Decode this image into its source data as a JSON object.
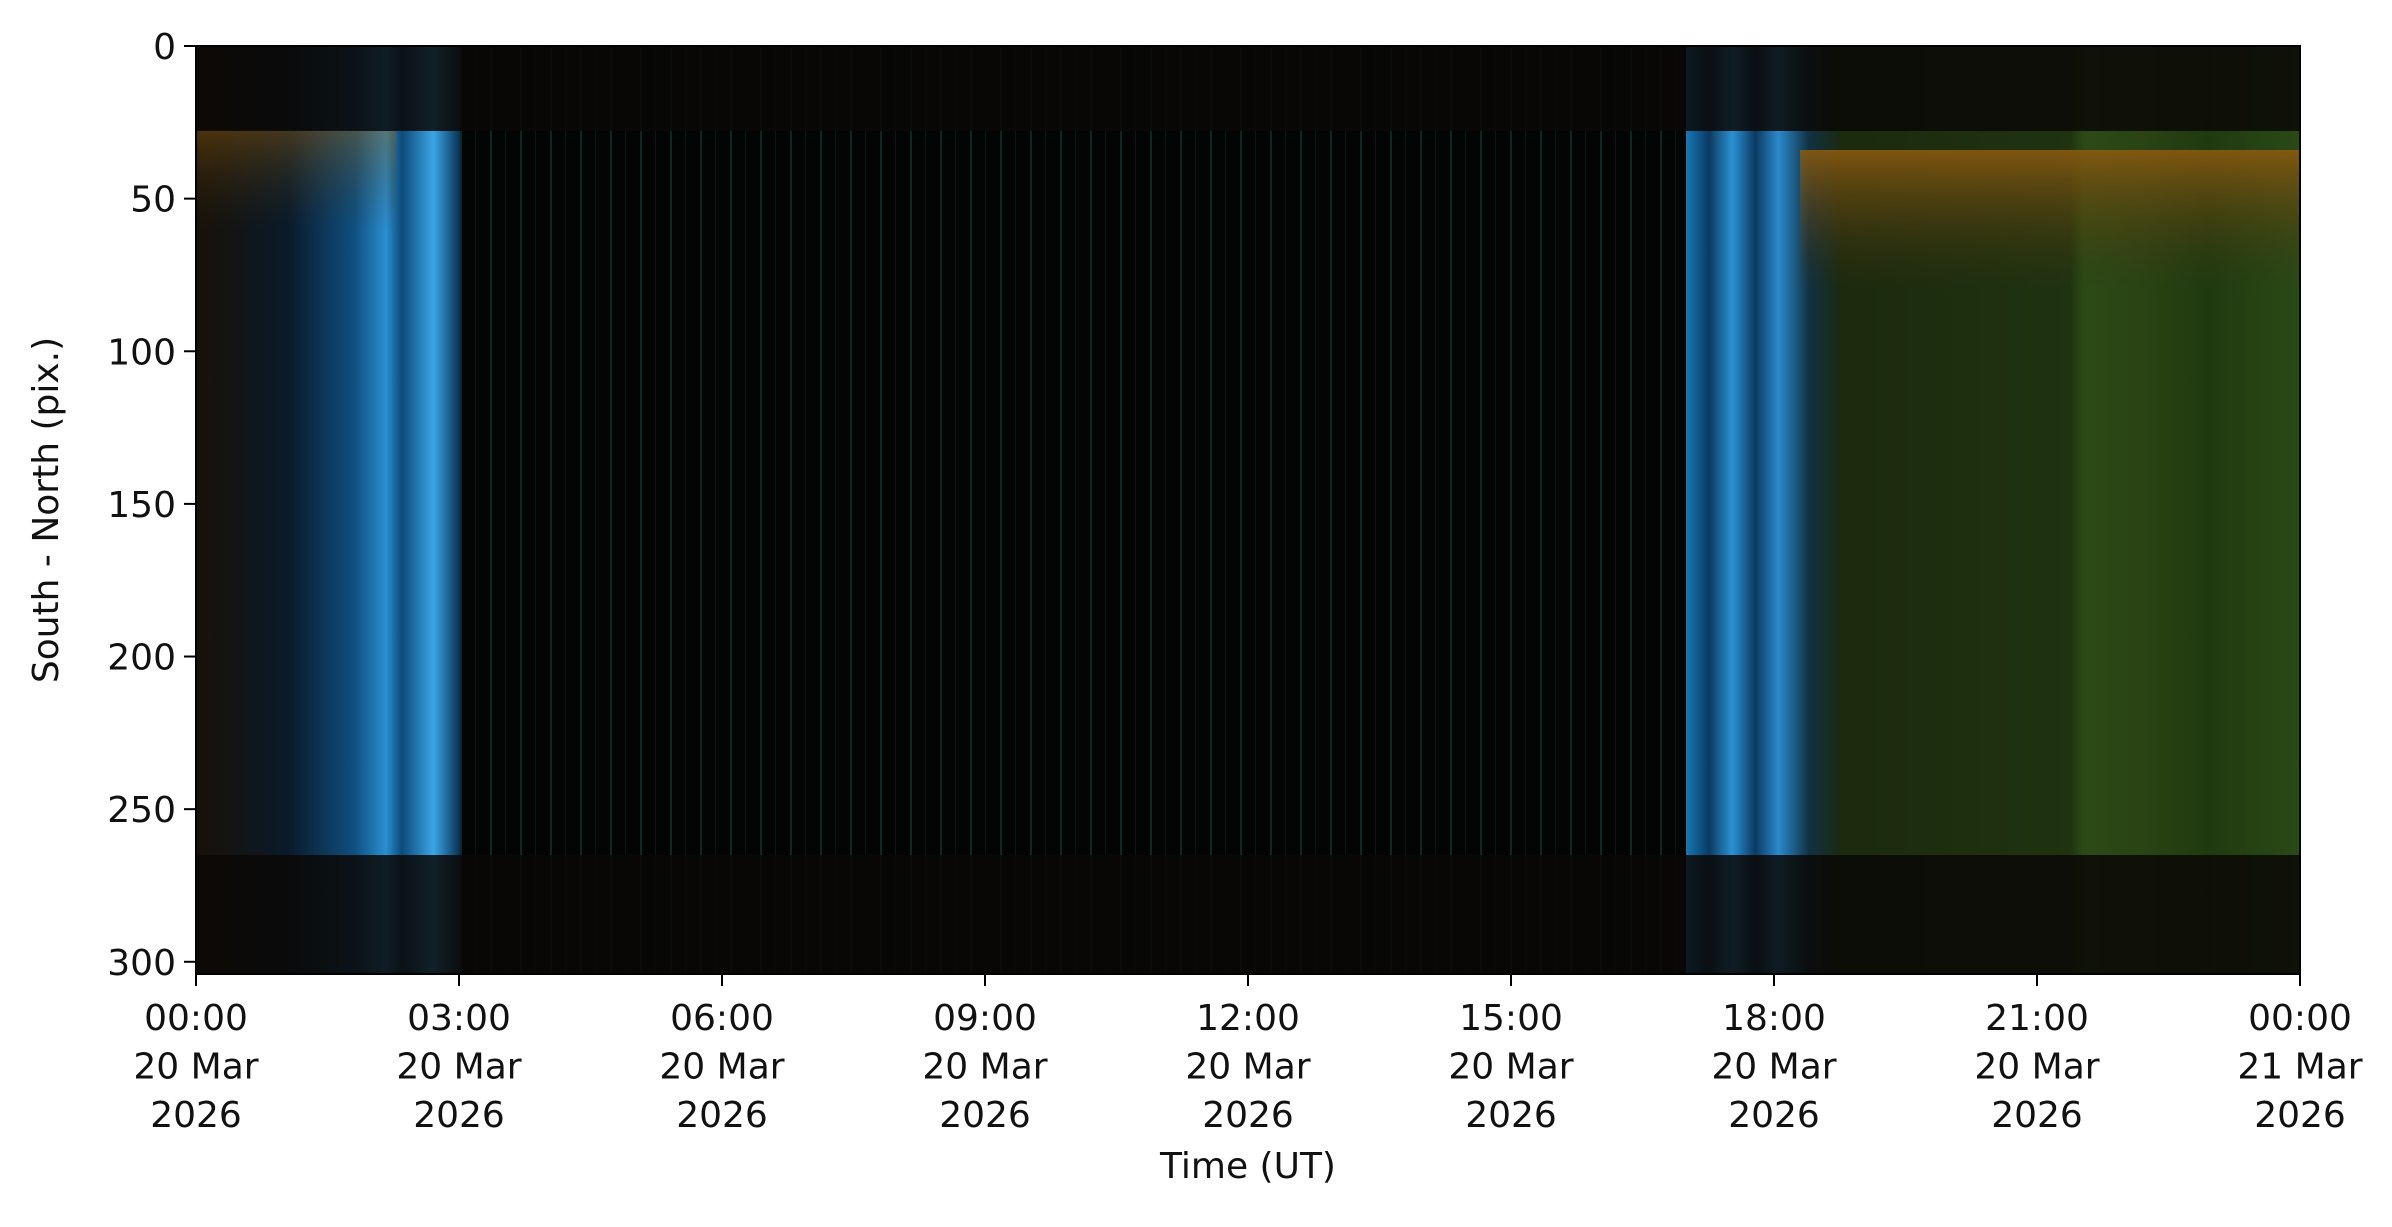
{
  "chart_data": {
    "type": "image",
    "xlabel": "Time (UT)",
    "ylabel": "South - North (pix.)",
    "xlim": [
      0,
      24
    ],
    "xticks": [
      {
        "value": 0,
        "label": "00:00\n20 Mar\n2026"
      },
      {
        "value": 3,
        "label": "03:00\n20 Mar\n2026"
      },
      {
        "value": 6,
        "label": "06:00\n20 Mar\n2026"
      },
      {
        "value": 9,
        "label": "09:00\n20 Mar\n2026"
      },
      {
        "value": 12,
        "label": "12:00\n20 Mar\n2026"
      },
      {
        "value": 15,
        "label": "15:00\n20 Mar\n2026"
      },
      {
        "value": 18,
        "label": "18:00\n20 Mar\n2026"
      },
      {
        "value": 21,
        "label": "21:00\n20 Mar\n2026"
      },
      {
        "value": 24,
        "label": "00:00\n21 Mar\n2026"
      }
    ],
    "ylim": [
      304,
      0
    ],
    "yticks": [
      0,
      50,
      100,
      150,
      200,
      250,
      300
    ]
  }
}
